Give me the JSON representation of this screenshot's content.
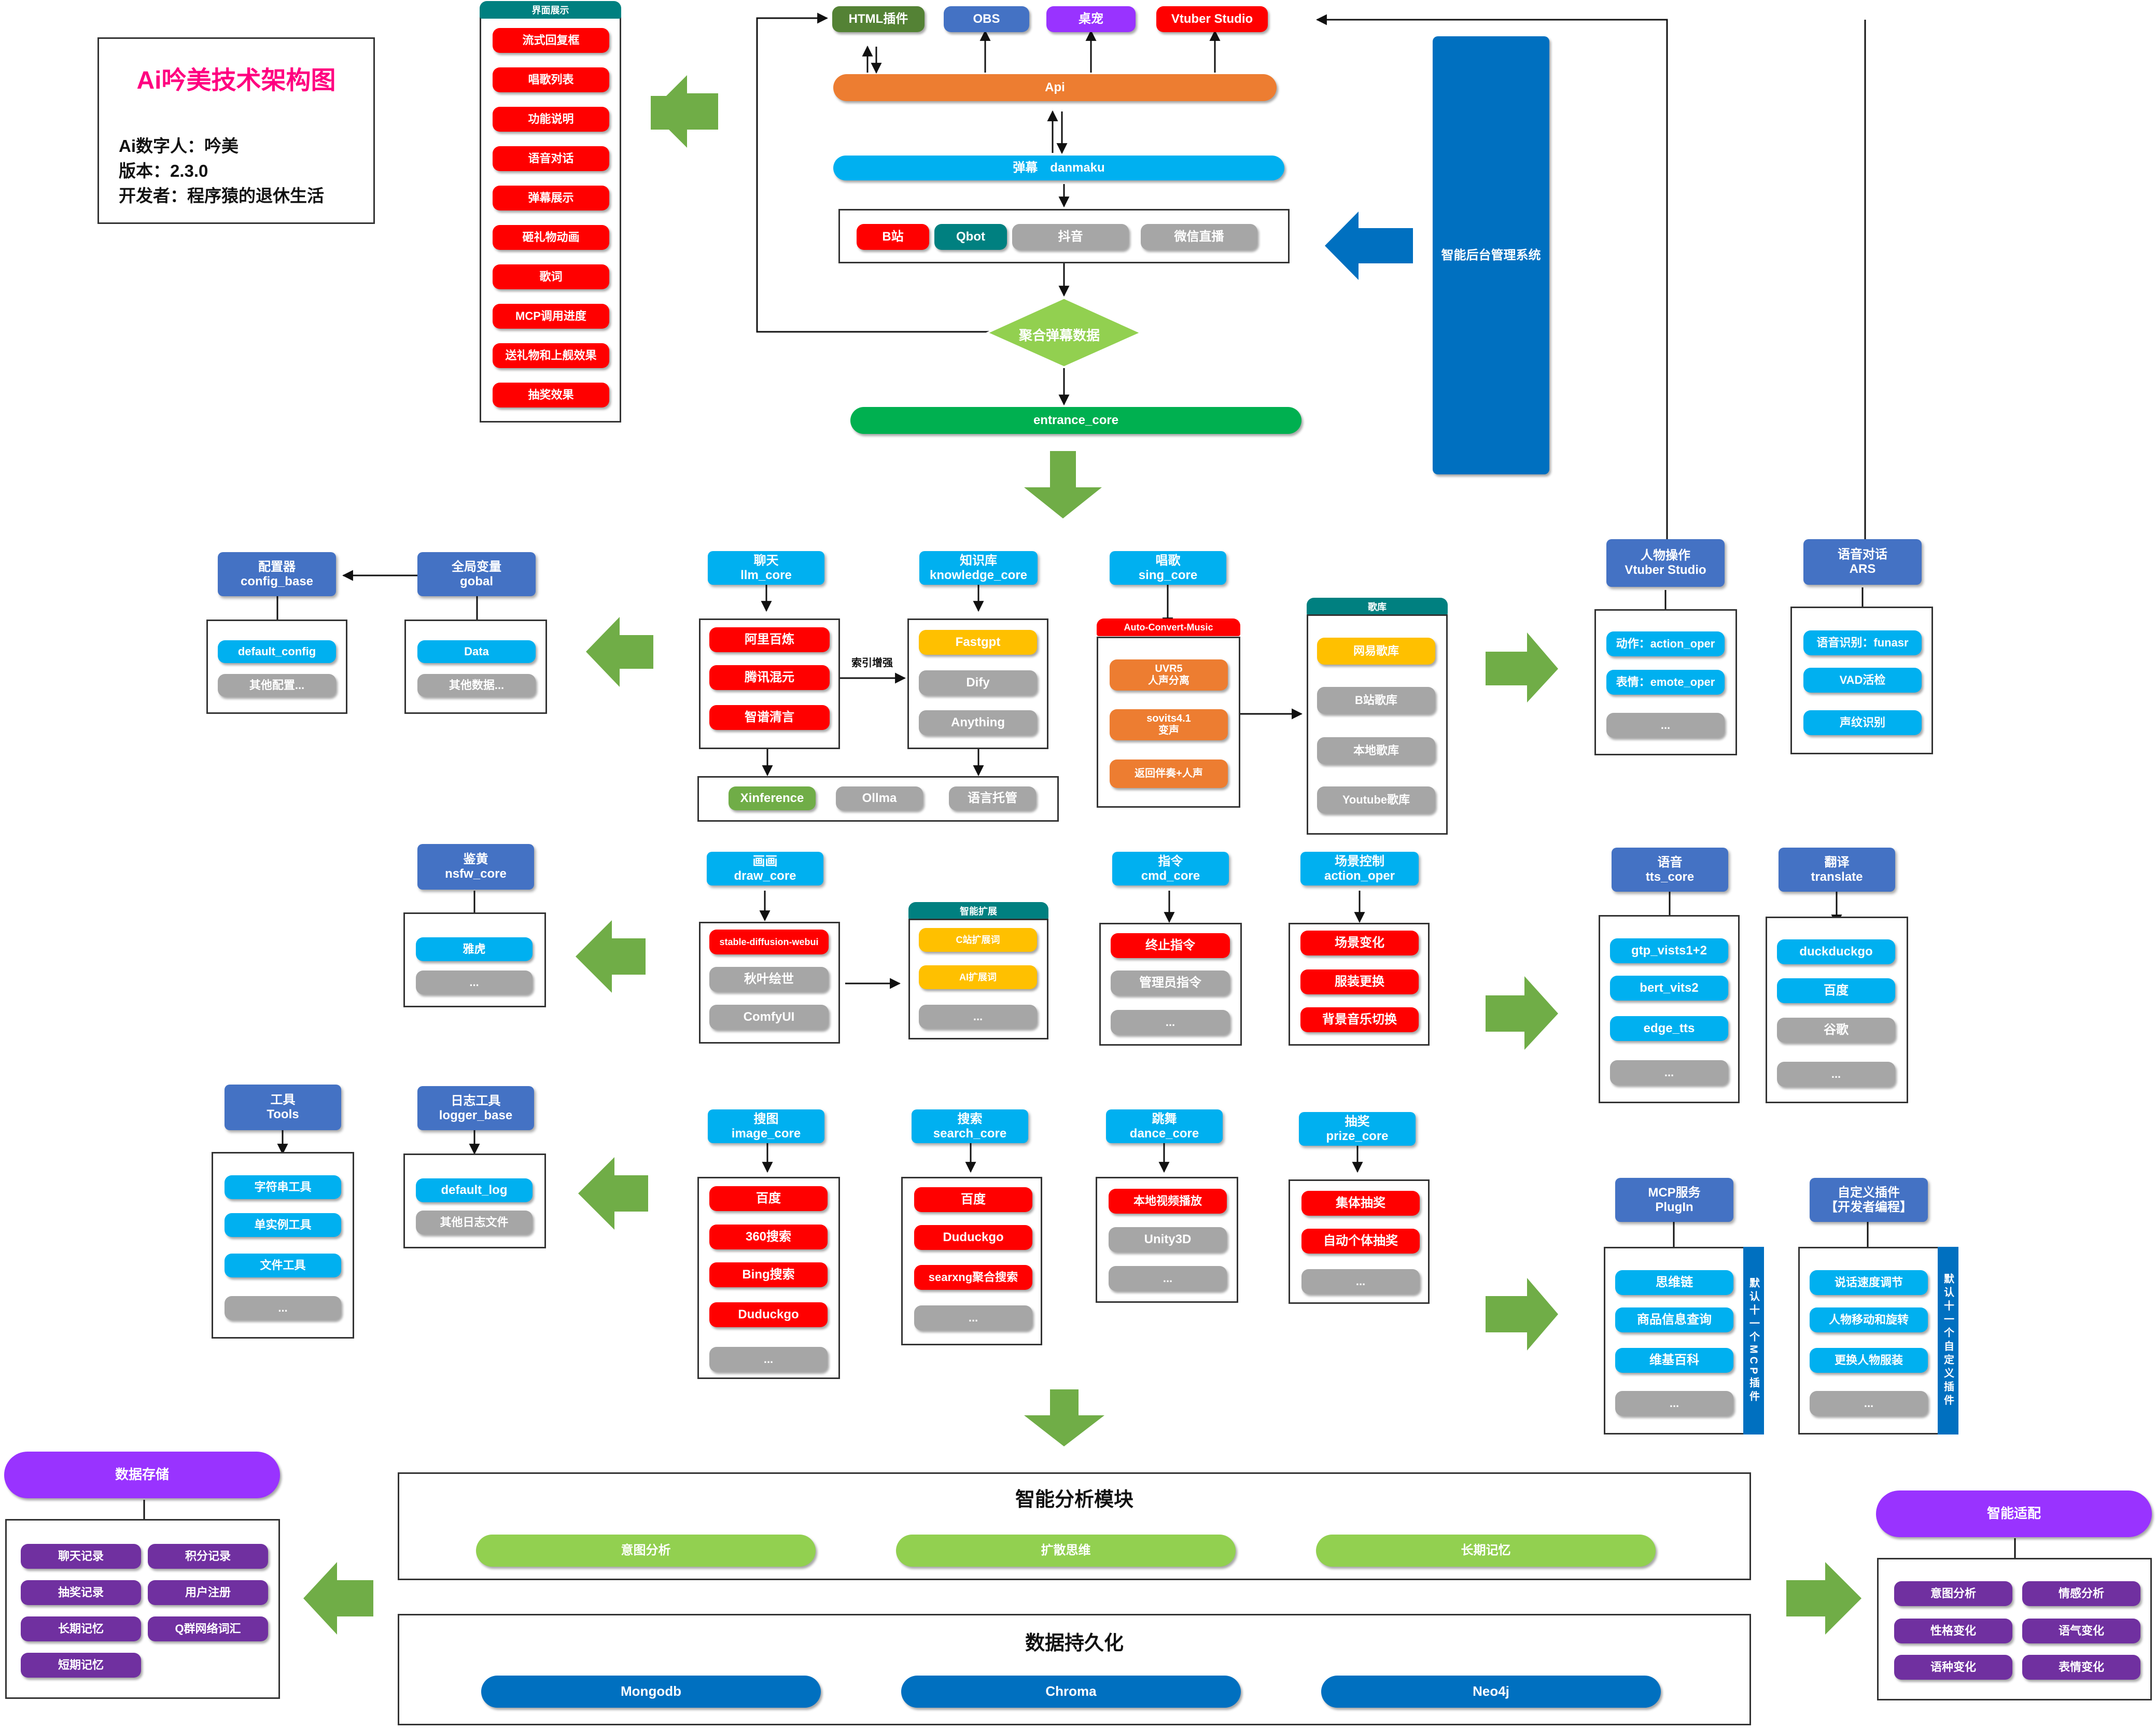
{
  "info": {
    "title": "Ai吟美技术架构图",
    "digital_human": "Ai数字人：吟美",
    "version": "版本：2.3.0",
    "developer": "开发者：程序猿的退休生活"
  },
  "ui_panel": {
    "header": "界面展示",
    "items": [
      "流式回复框",
      "唱歌列表",
      "功能说明",
      "语音对话",
      "弹幕展示",
      "砸礼物动画",
      "歌词",
      "MCP调用进度",
      "送礼物和上舰效果",
      "抽奖效果"
    ]
  },
  "top": {
    "outputs": [
      "HTML插件",
      "OBS",
      "桌宠",
      "Vtuber Studio"
    ],
    "api": "Api",
    "danmaku": "弹幕　danmaku",
    "platforms": [
      "B站",
      "Qbot",
      "抖音",
      "微信直播"
    ],
    "aggregate": "聚合弹幕数据",
    "entrance": "entrance_core",
    "admin": "智能后台管理系统"
  },
  "config": {
    "header": "配置器\nconfig_base",
    "items": [
      "default_config",
      "其他配置..."
    ]
  },
  "global": {
    "header": "全局变量\ngobal",
    "items": [
      "Data",
      "其他数据..."
    ]
  },
  "llm": {
    "header": "聊天\nllm_core",
    "items": [
      "阿里百炼",
      "腾讯混元",
      "智谱清言"
    ]
  },
  "index_label": "索引增强",
  "knowledge": {
    "header": "知识库\nknowledge_core",
    "items": [
      "Fastgpt",
      "Dify",
      "Anything"
    ]
  },
  "llm_extra": [
    "Xinference",
    "Ollma",
    "语言托管"
  ],
  "sing": {
    "header": "唱歌\nsing_core",
    "tab": "Auto-Convert-Music",
    "items": [
      "UVR5\n人声分离",
      "sovits4.1\n变声",
      "返回伴奏+人声"
    ]
  },
  "songlib": {
    "tab": "歌库",
    "items": [
      "网易歌库",
      "B站歌库",
      "本地歌库",
      "Youtube歌库"
    ]
  },
  "vtuber": {
    "header": "人物操作\nVtuber Studio",
    "items": [
      "动作：action_oper",
      "表情：emote_oper",
      "..."
    ]
  },
  "asr": {
    "header": "语音对话\nARS",
    "items": [
      "语音识别：funasr",
      "VAD活检",
      "声纹识别"
    ]
  },
  "nsfw": {
    "header": "鉴黄\nnsfw_core",
    "items": [
      "雅虎",
      "..."
    ]
  },
  "draw": {
    "header": "画画\ndraw_core",
    "items": [
      "stable-diffusion-webui",
      "秋叶绘世",
      "ComfyUI"
    ]
  },
  "smart_ext": {
    "tab": "智能扩展",
    "items": [
      "C站扩展词",
      "AI扩展词",
      "..."
    ]
  },
  "cmd": {
    "header": "指令\ncmd_core",
    "items": [
      "终止指令",
      "管理员指令",
      "..."
    ]
  },
  "scene": {
    "header": "场景控制\naction_oper",
    "items": [
      "场景变化",
      "服装更换",
      "背景音乐切换"
    ]
  },
  "tts": {
    "header": "语音\ntts_core",
    "items": [
      "gtp_vists1+2",
      "bert_vits2",
      "edge_tts",
      "..."
    ]
  },
  "translate": {
    "header": "翻译\ntranslate",
    "items": [
      "duckduckgo",
      "百度",
      "谷歌",
      "..."
    ]
  },
  "tools": {
    "header": "工具\nTools",
    "items": [
      "字符串工具",
      "单实例工具",
      "文件工具",
      "..."
    ]
  },
  "logger": {
    "header": "日志工具\nlogger_base",
    "items": [
      "default_log",
      "其他日志文件"
    ]
  },
  "image": {
    "header": "搜图\nimage_core",
    "items": [
      "百度",
      "360搜索",
      "Bing搜索",
      "Duduckgo",
      "..."
    ]
  },
  "search": {
    "header": "搜索\nsearch_core",
    "items": [
      "百度",
      "Duduckgo",
      "searxng聚合搜索",
      "..."
    ]
  },
  "dance": {
    "header": "跳舞\ndance_core",
    "items": [
      "本地视频播放",
      "Unity3D",
      "..."
    ]
  },
  "prize": {
    "header": "抽奖\nprize_core",
    "items": [
      "集体抽奖",
      "自动个体抽奖",
      "..."
    ]
  },
  "mcp": {
    "header": "MCP服务\nPlugIn",
    "items": [
      "思维链",
      "商品信息查询",
      "维基百科",
      "..."
    ],
    "side": "默认十一个MCP插件"
  },
  "custom": {
    "header": "自定义插件\n【开发者编程】",
    "items": [
      "说话速度调节",
      "人物移动和旋转",
      "更换人物服装",
      "..."
    ],
    "side": "默认十一个自定义插件"
  },
  "analysis": {
    "title": "智能分析模块",
    "items": [
      "意图分析",
      "扩散思维",
      "长期记忆"
    ]
  },
  "persist": {
    "title": "数据持久化",
    "items": [
      "Mongodb",
      "Chroma",
      "Neo4j"
    ]
  },
  "storage": {
    "header": "数据存储",
    "items": [
      "聊天记录",
      "积分记录",
      "抽奖记录",
      "用户注册",
      "长期记忆",
      "Q群网络词汇",
      "短期记忆"
    ]
  },
  "adapt": {
    "header": "智能适配",
    "items": [
      "意图分析",
      "情感分析",
      "性格变化",
      "语气变化",
      "语种变化",
      "表情变化"
    ]
  },
  "colors": {
    "red": "#ff0000",
    "gray": "#a6a6a6",
    "blue": "#00b0f0",
    "arrow_green": "#70ad47",
    "arrow_blue": "#0070c0",
    "header_blue": "#4472c4"
  }
}
